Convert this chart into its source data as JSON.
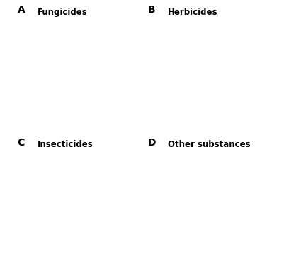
{
  "panels": [
    {
      "label": "A",
      "title": "Fungicides",
      "seed": 42,
      "dark_bias": 0.25
    },
    {
      "label": "B",
      "title": "Herbicides",
      "seed": 7,
      "dark_bias": 0.65
    },
    {
      "label": "C",
      "title": "Insecticides",
      "seed": 13,
      "dark_bias": 0.5
    },
    {
      "label": "D",
      "title": "Other substances",
      "seed": 99,
      "dark_bias": 0.4
    }
  ],
  "background_color": "#ffffff",
  "figure_width": 4.01,
  "figure_height": 3.75,
  "dpi": 100,
  "label_fontsize": 10,
  "title_fontsize": 8.5,
  "label_weight": "bold",
  "title_weight": "bold",
  "n_municipalities": 200,
  "edge_linewidth": 0.35
}
